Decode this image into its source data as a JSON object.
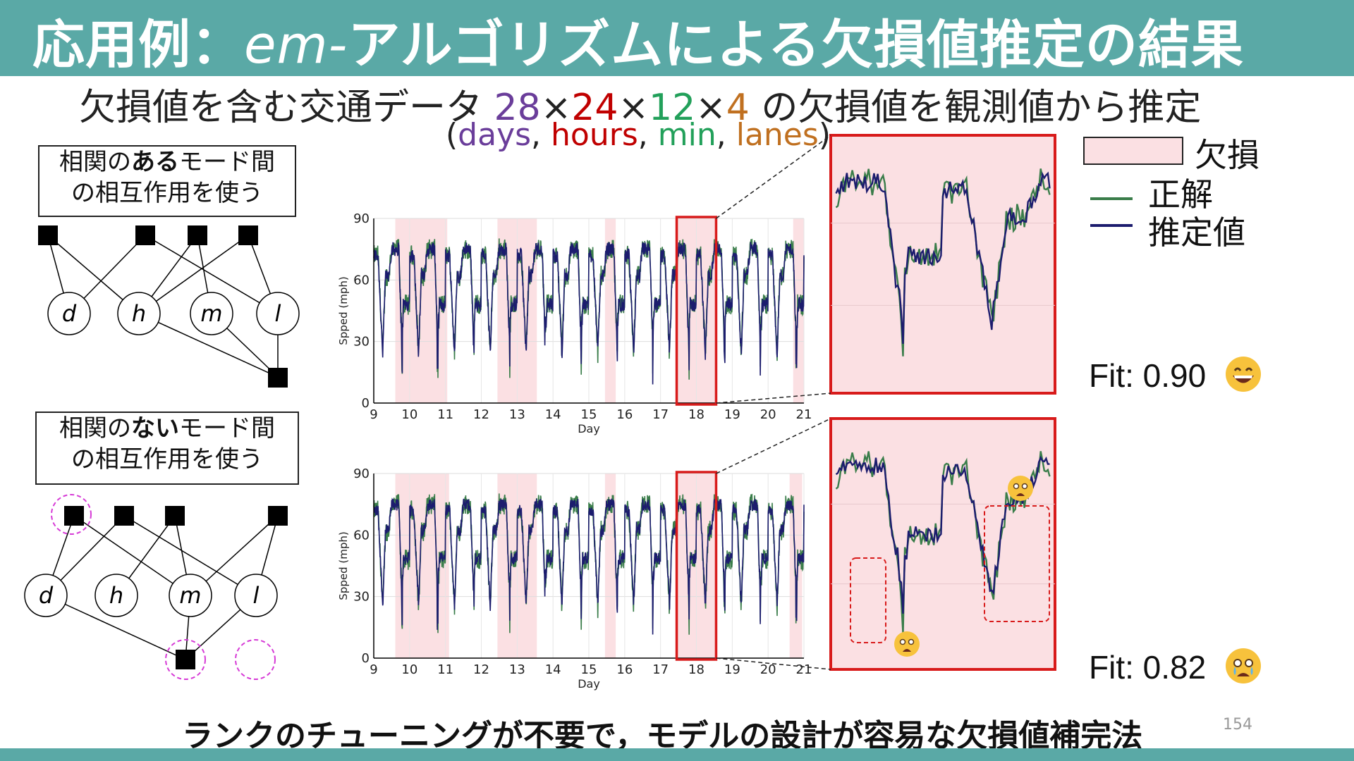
{
  "header": {
    "title_prefix": "応用例：",
    "title_em": "em-",
    "title_suffix": "アルゴリズムによる欠損値推定の結果"
  },
  "subtitle": {
    "before": "欠損値を含む交通データ",
    "dim1": "28",
    "dim2": "24",
    "dim3": "12",
    "dim4": "4",
    "times": "×",
    "after": "の欠損値を観測値から推定"
  },
  "dims_line": {
    "open": "(",
    "days": "days",
    "hours": "hours",
    "min": "min",
    "lanes": "lanes",
    "comma": ",",
    "close": ")"
  },
  "boxes": {
    "top": {
      "line1_a": "相関の",
      "line1_b": "ある",
      "line1_c": "モード間",
      "line2": "の相互作用を使う"
    },
    "bottom": {
      "line1_a": "相関の",
      "line1_b": "ない",
      "line1_c": "モード間",
      "line2": "の相互作用を使う"
    }
  },
  "graph_nodes": {
    "d": "d",
    "h": "h",
    "m": "m",
    "l": "l"
  },
  "legend": {
    "missing": "欠損",
    "truth": "正解",
    "estimate": "推定値"
  },
  "fits": {
    "top": "Fit: 0.90",
    "bottom": "Fit: 0.82"
  },
  "conclusion": "ランクのチューニングが不要で，モデルの設計が容易な欠損値補完法",
  "page_number": "154",
  "colors": {
    "header": "#5aa9a6",
    "truth": "#3a7d4a",
    "estimate": "#1c1c6e",
    "missing": "#fbe0e3",
    "highlight": "#d81b1b",
    "days": "#6a3d9a",
    "hours": "#c00000",
    "min": "#22a05a",
    "lanes": "#c07020",
    "dashed_circle": "#d63ad6"
  },
  "chart_data": [
    {
      "type": "line",
      "xlabel": "Day",
      "ylabel": "Spped (mph)",
      "xlim": [
        9,
        21
      ],
      "ylim": [
        0,
        90
      ],
      "xticks": [
        "9",
        "10",
        "11",
        "12",
        "13",
        "14",
        "15",
        "16",
        "17",
        "18",
        "19",
        "20",
        "21"
      ],
      "yticks": [
        "0",
        "30",
        "60",
        "90"
      ],
      "missing_intervals": [
        [
          9.6,
          11.05
        ],
        [
          12.45,
          13.55
        ],
        [
          15.45,
          15.75
        ],
        [
          17.45,
          18.55
        ],
        [
          20.7,
          21.0
        ]
      ],
      "highlight_interval": [
        17.45,
        18.55
      ],
      "series": [
        {
          "name": "正解"
        },
        {
          "name": "推定値"
        }
      ],
      "fit": 0.9
    },
    {
      "type": "line",
      "xlabel": "Day",
      "ylabel": "Spped (mph)",
      "xlim": [
        9,
        21
      ],
      "ylim": [
        0,
        90
      ],
      "xticks": [
        "9",
        "10",
        "11",
        "12",
        "13",
        "14",
        "15",
        "16",
        "17",
        "18",
        "19",
        "20",
        "21"
      ],
      "yticks": [
        "0",
        "30",
        "60",
        "90"
      ],
      "missing_intervals": [
        [
          9.6,
          11.1
        ],
        [
          12.45,
          13.55
        ],
        [
          15.45,
          15.75
        ],
        [
          17.45,
          18.55
        ],
        [
          20.6,
          20.95
        ]
      ],
      "highlight_interval": [
        17.45,
        18.55
      ],
      "series": [
        {
          "name": "正解"
        },
        {
          "name": "推定値"
        }
      ],
      "fit": 0.82
    }
  ]
}
